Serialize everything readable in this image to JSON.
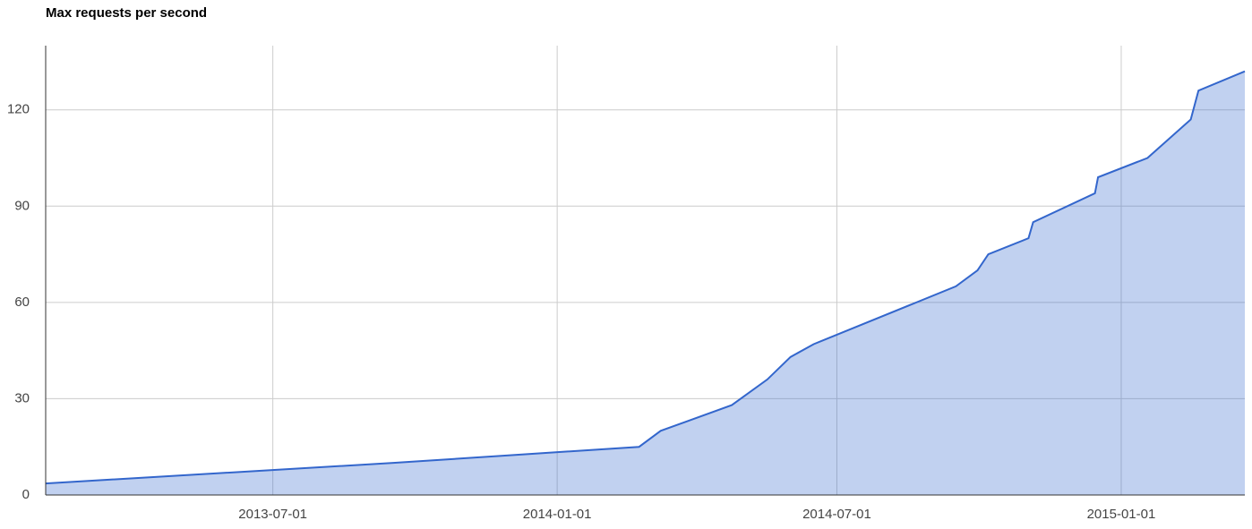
{
  "chart_data": {
    "type": "area",
    "title": "Max requests per second",
    "x": [
      "2013-02-04",
      "2013-09-17",
      "2014-02-23",
      "2014-03-09",
      "2014-04-24",
      "2014-05-17",
      "2014-06-01",
      "2014-06-16",
      "2014-09-16",
      "2014-09-30",
      "2014-10-07",
      "2014-11-02",
      "2014-11-05",
      "2014-12-15",
      "2014-12-17",
      "2015-01-18",
      "2015-02-15",
      "2015-02-20",
      "2015-03-22"
    ],
    "series": [
      {
        "name": "Max requests per second",
        "color": "#3366cc",
        "values": [
          3.6,
          10,
          15,
          20,
          28,
          36,
          43,
          47,
          65,
          70,
          75,
          80,
          85,
          94,
          99,
          105,
          117,
          126,
          132
        ]
      }
    ],
    "xlim": [
      "2013-02-04",
      "2015-03-22"
    ],
    "xticks": [
      "2013-07-01",
      "2014-01-01",
      "2014-07-01",
      "2015-01-01"
    ],
    "ylim": [
      0,
      140
    ],
    "yticks": [
      0,
      30,
      60,
      90,
      120
    ],
    "grid": true
  }
}
